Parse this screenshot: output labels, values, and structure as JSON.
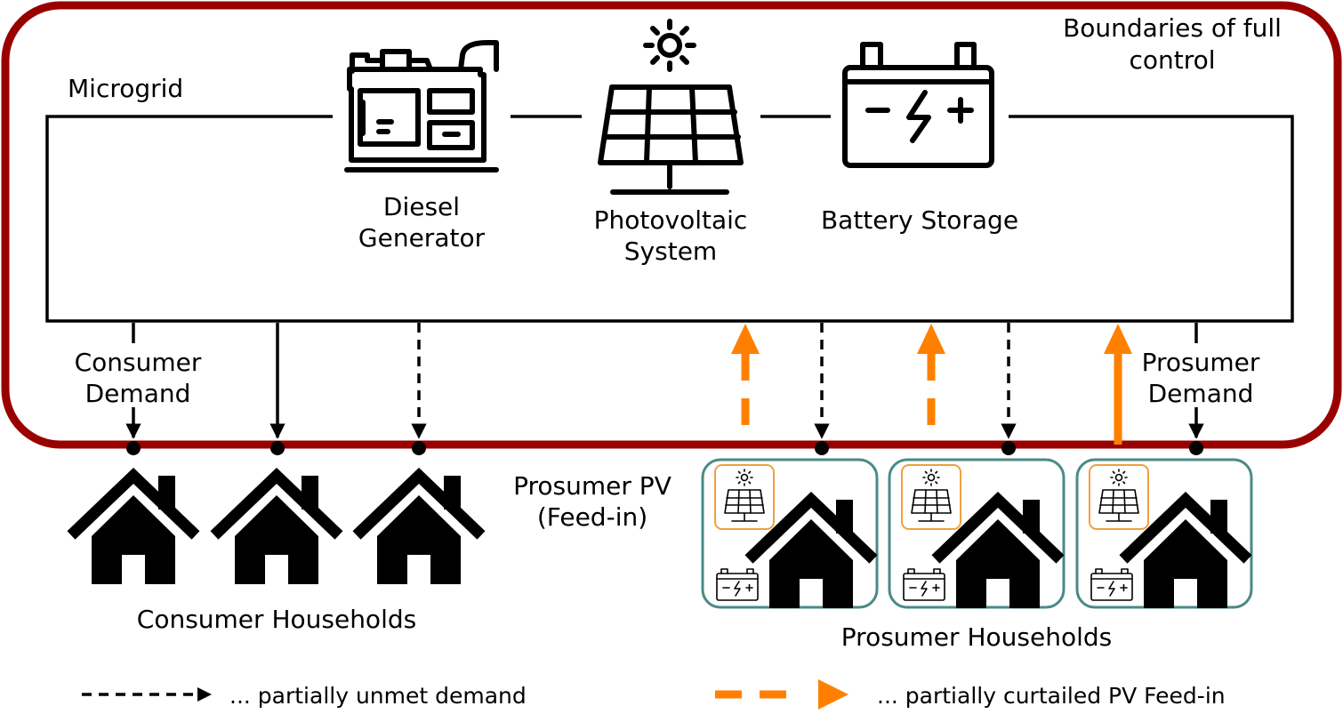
{
  "labels": {
    "boundary_line1": "Boundaries of full",
    "boundary_line2": "control",
    "microgrid": "Microgrid",
    "diesel_line1": "Diesel",
    "diesel_line2": "Generator",
    "pv_line1": "Photovoltaic",
    "pv_line2": "System",
    "battery": "Battery Storage",
    "consumer_demand_line1": "Consumer",
    "consumer_demand_line2": "Demand",
    "prosumer_demand_line1": "Prosumer",
    "prosumer_demand_line2": "Demand",
    "prosumer_pv_line1": "Prosumer PV",
    "prosumer_pv_line2": "(Feed-in)",
    "consumer_households": "Consumer Households",
    "prosumer_households": "Prosumer Households"
  },
  "legend": {
    "unmet_demand": "... partially unmet demand",
    "curtailed_pv": "... partially curtailed PV Feed-in"
  },
  "colors": {
    "boundary": "#990000",
    "pv_feed_in": "#ff8000",
    "prosumer_box_border": "#4a8a88",
    "mini_pv_border": "#f0a040",
    "lines": "#000000"
  }
}
